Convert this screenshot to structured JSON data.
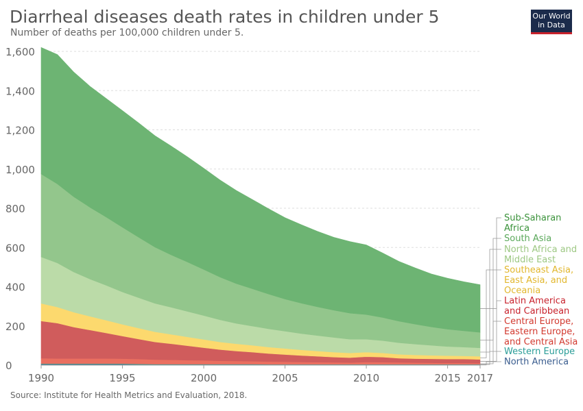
{
  "title": "Diarrheal diseases death rates in children under 5",
  "subtitle": "Number of deaths per 100,000 children under 5.",
  "logo": "Our World in Data",
  "source": "Source: Institute for Health Metrics and Evaluation, 2018.",
  "chart_data": {
    "type": "area",
    "stacked": true,
    "x_ticks": [
      "1990",
      "1995",
      "2000",
      "2005",
      "2010",
      "2015",
      "2017"
    ],
    "y_ticks": [
      "0",
      "200",
      "400",
      "600",
      "800",
      "1,000",
      "1,200",
      "1,400",
      "1,600"
    ],
    "ylim": [
      0,
      1600
    ],
    "xlim": [
      1990,
      2017
    ],
    "grid": true,
    "legend_position": "right",
    "x": [
      1990,
      1991,
      1992,
      1993,
      1994,
      1995,
      1996,
      1997,
      1998,
      1999,
      2000,
      2001,
      2002,
      2003,
      2004,
      2005,
      2006,
      2007,
      2008,
      2009,
      2010,
      2011,
      2012,
      2013,
      2014,
      2015,
      2016,
      2017
    ],
    "series": [
      {
        "name": "North America",
        "color": "#3a5d8f",
        "values": [
          4,
          4,
          4,
          4,
          4,
          4,
          3,
          3,
          3,
          3,
          3,
          3,
          3,
          3,
          2,
          2,
          2,
          2,
          2,
          2,
          2,
          2,
          2,
          2,
          2,
          2,
          2,
          2
        ]
      },
      {
        "name": "Western Europe",
        "color": "#2a9d98",
        "values": [
          3,
          3,
          3,
          3,
          3,
          3,
          3,
          2,
          2,
          2,
          2,
          2,
          2,
          2,
          2,
          2,
          2,
          2,
          2,
          2,
          2,
          2,
          2,
          2,
          2,
          2,
          2,
          2
        ]
      },
      {
        "name": "Central Europe, Eastern Europe, and Central Asia",
        "color": "#ea6f60",
        "values": [
          28,
          27,
          27,
          27,
          27,
          26,
          25,
          23,
          22,
          20,
          19,
          17,
          16,
          15,
          14,
          13,
          12,
          11,
          10,
          9,
          12,
          11,
          10,
          9,
          8,
          7,
          7,
          6
        ]
      },
      {
        "name": "Latin America and Caribbean",
        "color": "#d05c5c",
        "values": [
          190,
          180,
          160,
          145,
          130,
          115,
          102,
          90,
          82,
          74,
          65,
          57,
          51,
          46,
          41,
          37,
          33,
          30,
          27,
          25,
          27,
          26,
          21,
          20,
          20,
          20,
          20,
          19
        ]
      },
      {
        "name": "Southeast Asia, East Asia, and Oceania",
        "color": "#fcd96e",
        "values": [
          90,
          82,
          76,
          70,
          65,
          60,
          56,
          52,
          48,
          45,
          42,
          39,
          37,
          35,
          33,
          31,
          29,
          27,
          25,
          24,
          23,
          21,
          20,
          19,
          18,
          17,
          16,
          16
        ]
      },
      {
        "name": "North Africa and Middle East",
        "color": "#bbdba8",
        "values": [
          237,
          225,
          205,
          190,
          178,
          165,
          155,
          145,
          138,
          130,
          122,
          113,
          104,
          98,
          93,
          88,
          83,
          79,
          75,
          70,
          66,
          63,
          59,
          55,
          51,
          47,
          45,
          43
        ]
      },
      {
        "name": "South Asia",
        "color": "#93c68c",
        "values": [
          423,
          403,
          384,
          366,
          348,
          330,
          308,
          287,
          267,
          252,
          235,
          218,
          203,
          190,
          177,
          164,
          155,
          146,
          139,
          133,
          126,
          118,
          110,
          102,
          94,
          88,
          83,
          79
        ]
      },
      {
        "name": "Sub-Saharan Africa",
        "color": "#6db473",
        "values": [
          645,
          660,
          636,
          617,
          605,
          595,
          583,
          568,
          555,
          536,
          516,
          495,
          475,
          455,
          435,
          415,
          400,
          385,
          372,
          365,
          355,
          329,
          305,
          287,
          270,
          260,
          250,
          243
        ]
      }
    ]
  }
}
